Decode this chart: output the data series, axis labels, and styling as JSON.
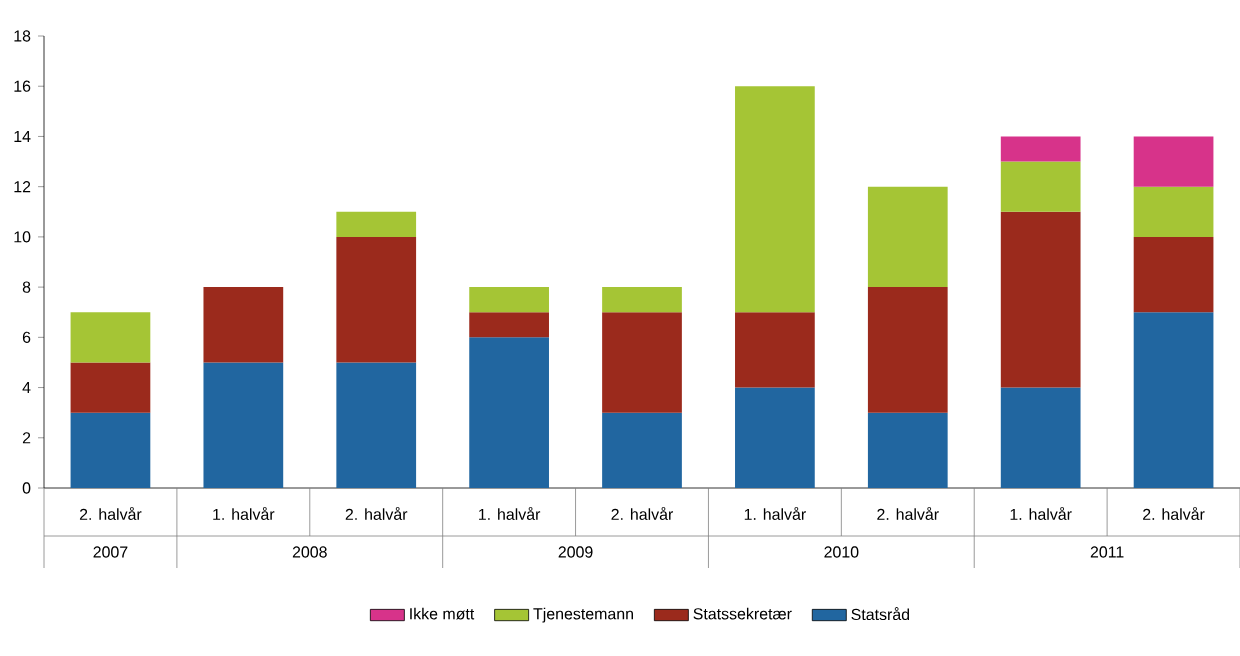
{
  "chart_data": {
    "type": "bar",
    "stacked": true,
    "categories": [
      "2. halvår",
      "1. halvår",
      "2. halvår",
      "1. halvår",
      "2. halvår",
      "1. halvår",
      "2. halvår",
      "1. halvår",
      "2. halvår"
    ],
    "series": [
      {
        "name": "Statsråd",
        "color": "#2166a0",
        "values": [
          3,
          5,
          5,
          6,
          3,
          4,
          3,
          4,
          7
        ]
      },
      {
        "name": "Statssekretær",
        "color": "#9b2a1c",
        "values": [
          2,
          3,
          5,
          1,
          4,
          3,
          5,
          7,
          3
        ]
      },
      {
        "name": "Tjenestemann",
        "color": "#a5c535",
        "values": [
          2,
          null,
          1,
          1,
          1,
          9,
          4,
          2,
          2
        ]
      },
      {
        "name": "Ikke møtt",
        "color": "#d7338a",
        "values": [
          null,
          null,
          null,
          null,
          null,
          null,
          null,
          1,
          2
        ]
      }
    ],
    "annotations": [
      "2007",
      "2008",
      "2009",
      "2010",
      "2011"
    ],
    "ylim": [
      0,
      18
    ],
    "yticks": [
      0,
      2,
      4,
      6,
      8,
      10,
      12,
      14,
      16,
      18
    ],
    "grid": false,
    "legend": "bottom"
  }
}
